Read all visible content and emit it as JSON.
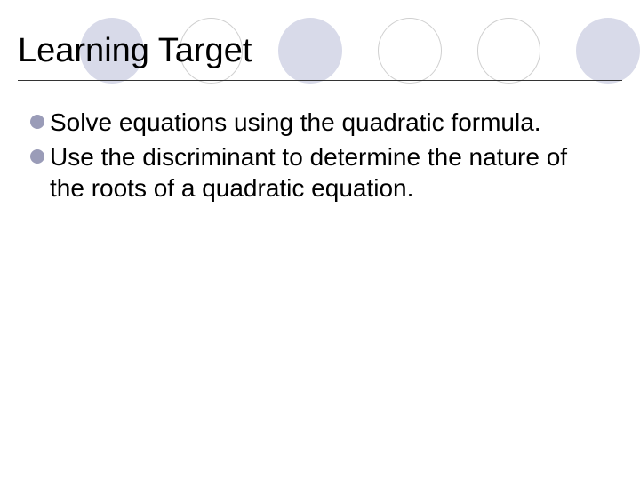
{
  "slide": {
    "title": "Learning Target",
    "bullets": [
      "Solve equations using the quadratic formula.",
      "Use the discriminant to determine the nature of the roots of a quadratic equation."
    ]
  },
  "style": {
    "background_color": "#ffffff",
    "title_fontsize": 38,
    "title_color": "#000000",
    "body_fontsize": 28,
    "body_color": "#000000",
    "bullet_color": "#9a9cb8",
    "circle_fill_color": "#d8dae9",
    "circle_outline_color": "#d0d0d0",
    "divider_color": "#333333",
    "circles_pattern": [
      "filled",
      "outlined",
      "filled",
      "outlined",
      "outlined",
      "filled"
    ]
  }
}
